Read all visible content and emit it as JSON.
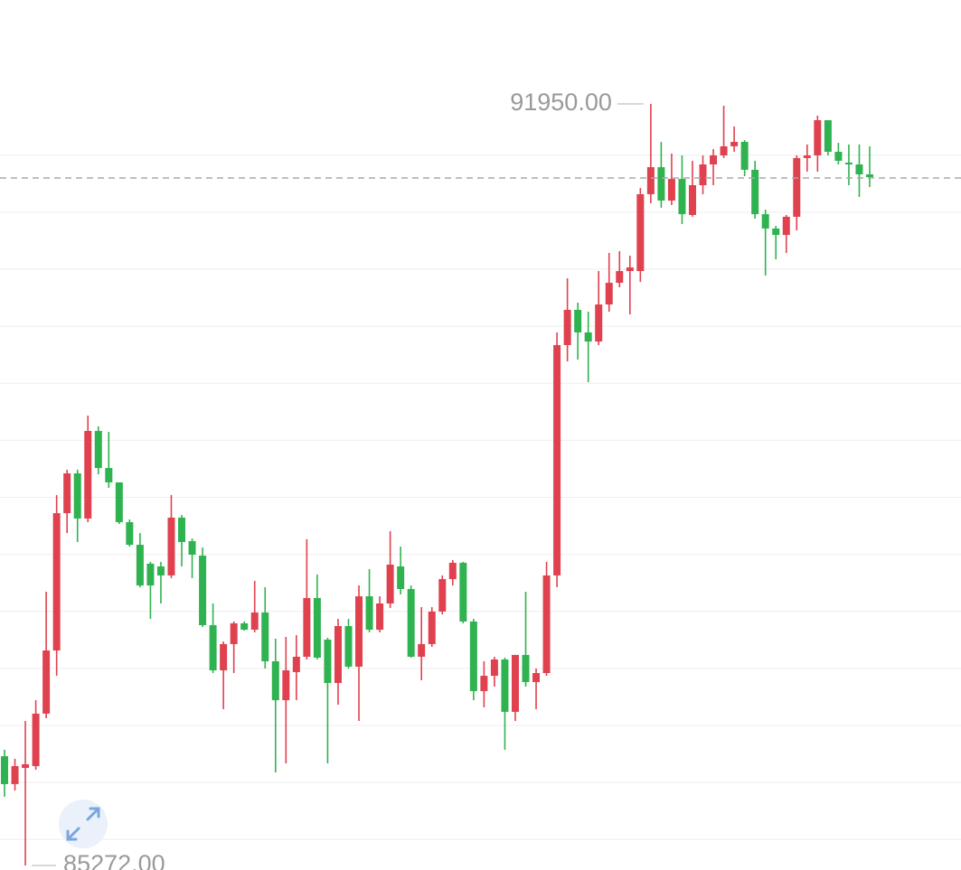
{
  "chart_data": {
    "type": "candlestick",
    "open": [
      86230,
      85985,
      86127,
      86143,
      86603,
      87157,
      88361,
      88710,
      88314,
      89082,
      88757,
      88631,
      88282,
      88084,
      87918,
      87894,
      87815,
      88322,
      88116,
      87989,
      87379,
      86983,
      87213,
      87395,
      87339,
      87490,
      87062,
      86721,
      86967,
      87102,
      87617,
      87252,
      86872,
      87371,
      87015,
      87632,
      87339,
      87569,
      87894,
      87696,
      87102,
      87213,
      87498,
      87783,
      87926,
      87411,
      86801,
      86935,
      87078,
      86619,
      87118,
      86880,
      86959,
      87815,
      89835,
      90144,
      89946,
      89866,
      90191,
      90381,
      90484,
      90484,
      91158,
      91395,
      91102,
      91292,
      90976,
      91237,
      91419,
      91498,
      91578,
      91617,
      91372,
      90983,
      90857,
      90801,
      90960,
      91475,
      91498,
      91807,
      91530,
      91435,
      91419,
      91332
    ],
    "high": [
      86286,
      86207,
      86539,
      86721,
      87672,
      88520,
      88742,
      88742,
      89217,
      89122,
      89074,
      88631,
      88306,
      88187,
      87934,
      87934,
      88520,
      88345,
      88139,
      88060,
      87569,
      87236,
      87411,
      87411,
      87767,
      87712,
      87260,
      87276,
      87292,
      88132,
      87823,
      87268,
      87434,
      87434,
      87727,
      87870,
      87632,
      88203,
      88068,
      87727,
      87537,
      87537,
      87815,
      87949,
      87934,
      87434,
      87062,
      87102,
      87094,
      87118,
      87672,
      86999,
      87934,
      89946,
      90421,
      90207,
      90128,
      90484,
      90643,
      90659,
      90619,
      91213,
      91950,
      91617,
      91514,
      91498,
      91451,
      91498,
      91554,
      91934,
      91752,
      91633,
      91451,
      91023,
      90880,
      90976,
      91498,
      91594,
      91847,
      91807,
      91609,
      91594,
      91594,
      91578
    ],
    "low": [
      85874,
      85929,
      85272,
      86111,
      86563,
      86935,
      88187,
      88108,
      88282,
      88702,
      88583,
      88266,
      88068,
      87712,
      87434,
      87569,
      87791,
      87894,
      87791,
      87363,
      86959,
      86642,
      86959,
      87331,
      87316,
      86999,
      86088,
      86167,
      86721,
      87078,
      87078,
      86167,
      86682,
      86999,
      86539,
      87316,
      87316,
      87530,
      87648,
      87094,
      86896,
      87189,
      87474,
      87727,
      87395,
      86721,
      86658,
      86840,
      86286,
      86539,
      86840,
      86642,
      86935,
      87712,
      89692,
      89708,
      89510,
      89835,
      90128,
      90342,
      90104,
      90389,
      91078,
      91039,
      91063,
      90896,
      90960,
      91158,
      91237,
      91475,
      91530,
      91316,
      90944,
      90445,
      90587,
      90643,
      90841,
      91356,
      91356,
      91498,
      91419,
      91237,
      91134,
      91221
    ],
    "close": [
      85985,
      86143,
      86159,
      86603,
      87157,
      88361,
      88710,
      88314,
      89082,
      88757,
      88631,
      88282,
      88084,
      87727,
      87727,
      87815,
      88322,
      88108,
      87997,
      87379,
      86983,
      87213,
      87395,
      87339,
      87490,
      87062,
      86721,
      86983,
      87102,
      87617,
      87094,
      86872,
      87371,
      87015,
      87632,
      87339,
      87569,
      87910,
      87696,
      87102,
      87213,
      87498,
      87783,
      87926,
      87411,
      86801,
      86935,
      87078,
      86619,
      87118,
      86880,
      86959,
      87815,
      89835,
      90144,
      89946,
      89866,
      90191,
      90381,
      90484,
      90516,
      91158,
      91395,
      91102,
      91292,
      90983,
      91237,
      91419,
      91498,
      91578,
      91617,
      91372,
      90983,
      90857,
      90801,
      90960,
      91475,
      91498,
      91807,
      91530,
      91451,
      91419,
      91332,
      91308
    ],
    "ylim": [
      85232,
      92861
    ],
    "grid_values": [
      91500,
      91000,
      90500,
      90000,
      89500,
      89000,
      88500,
      88000,
      87500,
      87000,
      86500,
      86000,
      85500
    ],
    "grid": true,
    "reference_line": 91300,
    "up_color": "#e0414f",
    "down_color": "#2fb350",
    "max_label": "91950.00",
    "min_label": "85272.00"
  }
}
